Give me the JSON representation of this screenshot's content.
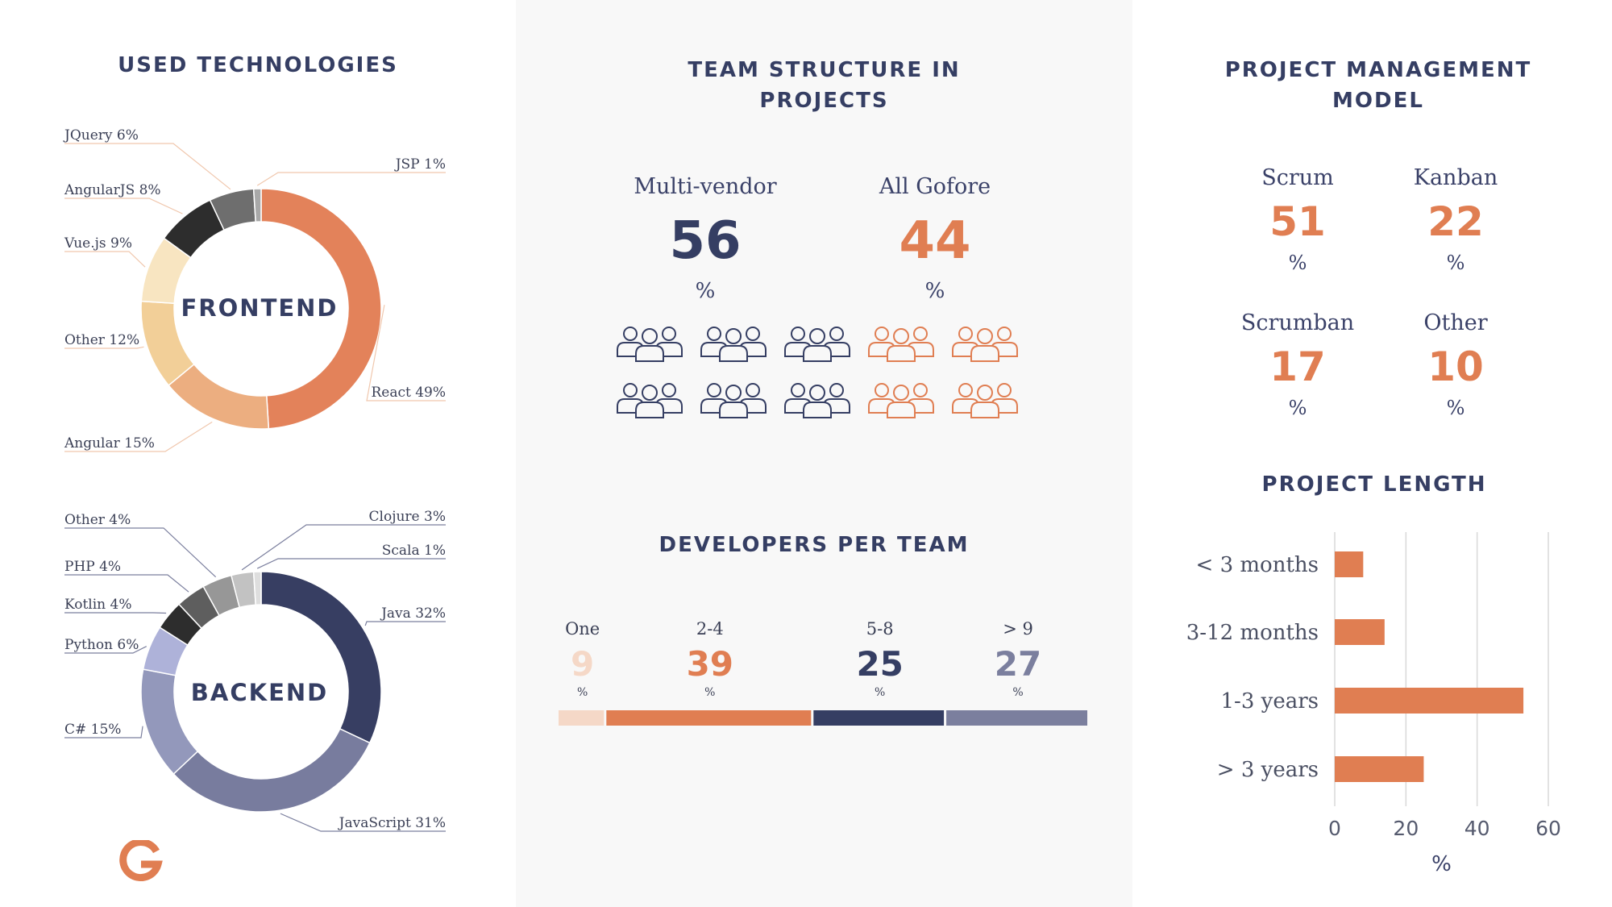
{
  "used_technologies": {
    "title": "USED TECHNOLOGIES",
    "frontend_label": "FRONTEND",
    "backend_label": "BACKEND"
  },
  "team_structure": {
    "title_line1": "TEAM STRUCTURE IN",
    "title_line2": "PROJECTS",
    "multi_vendor_label": "Multi-vendor",
    "multi_vendor_value": "56",
    "all_gofore_label": "All Gofore",
    "all_gofore_value": "44",
    "percent": "%"
  },
  "developers_per_team": {
    "title": "DEVELOPERS PER TEAM",
    "percent": "%"
  },
  "project_management": {
    "title_line1": "PROJECT MANAGEMENT",
    "title_line2": "MODEL",
    "percent": "%",
    "items": [
      {
        "label": "Scrum",
        "value": "51"
      },
      {
        "label": "Kanban",
        "value": "22"
      },
      {
        "label": "Scrumban",
        "value": "17"
      },
      {
        "label": "Other",
        "value": "10"
      }
    ]
  },
  "project_length": {
    "title": "PROJECT LENGTH"
  },
  "colors": {
    "navy": "#353e63",
    "orange": "#e07e52",
    "light_orange": "#f5d9c8",
    "slate": "#7b7f9e"
  },
  "chart_data": [
    {
      "type": "pie",
      "name": "FRONTEND",
      "categories": [
        "React",
        "Angular",
        "Other",
        "Vue.js",
        "AngularJS",
        "JQuery",
        "JSP"
      ],
      "labels": [
        "React 49%",
        "Angular 15%",
        "Other 12%",
        "Vue.js 9%",
        "AngularJS 8%",
        "JQuery  6%",
        "JSP 1%"
      ],
      "values": [
        49,
        15,
        12,
        9,
        8,
        6,
        1
      ],
      "colors": [
        "#e3825a",
        "#ecae80",
        "#f2cf98",
        "#f8e5c1",
        "#2d2d2d",
        "#6e6e6e",
        "#a8a8a8"
      ]
    },
    {
      "type": "pie",
      "name": "BACKEND",
      "categories": [
        "Java",
        "JavaScript",
        "C#",
        "Python",
        "Kotlin",
        "PHP",
        "Other",
        "Clojure",
        "Scala"
      ],
      "labels": [
        "Java 32%",
        "JavaScript 31%",
        "C# 15%",
        "Python 6%",
        "Kotlin 4%",
        "PHP 4%",
        "Other 4%",
        "Clojure 3%",
        "Scala 1%"
      ],
      "values": [
        32,
        31,
        15,
        6,
        4,
        4,
        4,
        3,
        1
      ],
      "colors": [
        "#373e62",
        "#787c9e",
        "#9398bb",
        "#aeb2d9",
        "#2d2d2d",
        "#5e5e5e",
        "#979797",
        "#c2c2c2",
        "#dedede"
      ]
    },
    {
      "type": "bar",
      "name": "DEVELOPERS PER TEAM",
      "categories": [
        "One",
        "2-4",
        "5-8",
        "> 9"
      ],
      "values": [
        9,
        39,
        25,
        27
      ],
      "colors": [
        "#f5d8c7",
        "#e07e52",
        "#353e63",
        "#7b7f9e"
      ]
    },
    {
      "type": "bar",
      "name": "PROJECT LENGTH",
      "orientation": "horizontal",
      "categories": [
        "< 3 months",
        "3-12 months",
        "1-3 years",
        "> 3 years"
      ],
      "values": [
        8,
        14,
        53,
        25
      ],
      "xlim": [
        0,
        60
      ],
      "xticks": [
        0,
        20,
        40,
        60
      ],
      "xlabel": "%",
      "grid": true,
      "color": "#e07e52"
    }
  ]
}
